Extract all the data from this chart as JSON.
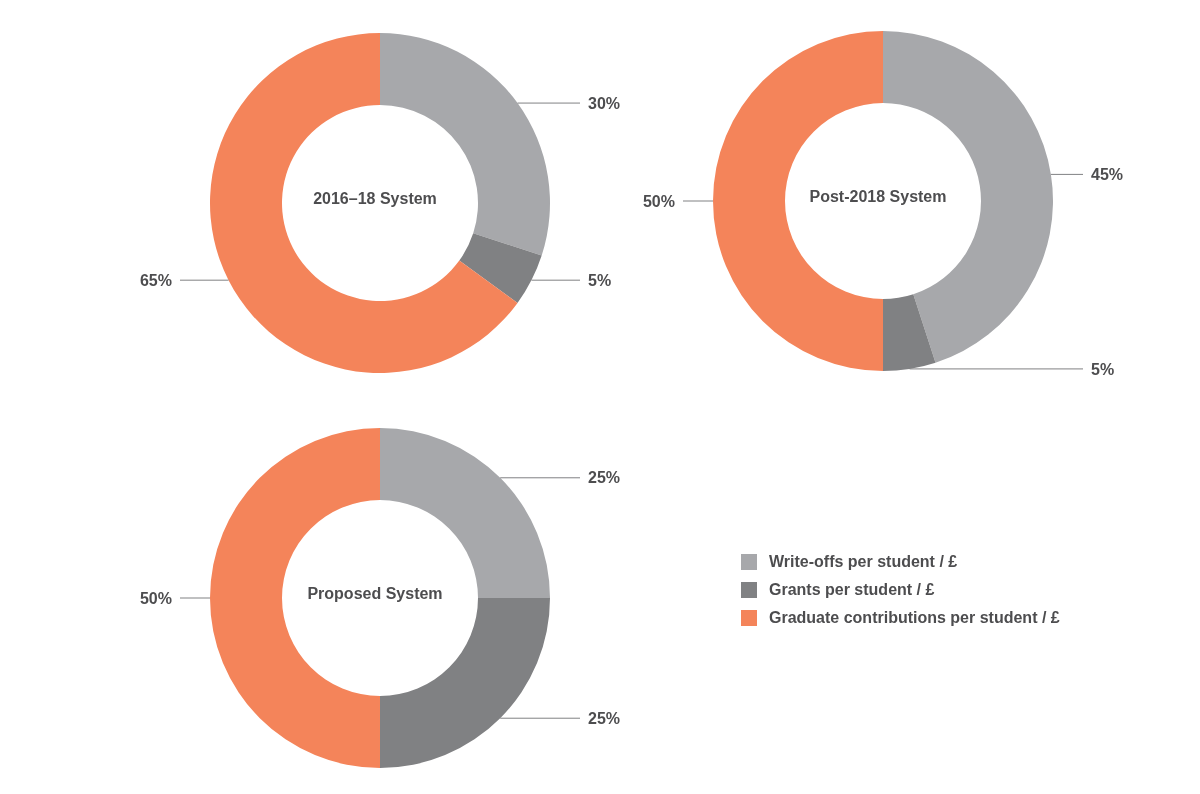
{
  "chart_data": [
    {
      "type": "donut",
      "title": "2016–18 System",
      "categories": [
        null,
        null,
        null
      ],
      "values": [
        30,
        5,
        65
      ],
      "value_labels": [
        "30%",
        "5%",
        "65%"
      ],
      "colors": [
        "#a7a8ab",
        "#808183",
        "#f4845a"
      ],
      "legend": false
    },
    {
      "type": "donut",
      "title": "Post-2018 System",
      "categories": [
        null,
        null,
        null
      ],
      "values": [
        45,
        5,
        50
      ],
      "value_labels": [
        "45%",
        "5%",
        "50%"
      ],
      "colors": [
        "#a7a8ab",
        "#808183",
        "#f4845a"
      ],
      "legend": false
    },
    {
      "type": "donut",
      "title": "Proposed System",
      "categories": [
        "Write-offs per student / £",
        "Grants per student / £",
        "Graduate contributions per student / £"
      ],
      "values": [
        25,
        25,
        50
      ],
      "value_labels": [
        "25%",
        "25%",
        "50%"
      ],
      "colors": [
        "#a7a8ab",
        "#808183",
        "#f4845a"
      ],
      "legend": "right"
    }
  ]
}
